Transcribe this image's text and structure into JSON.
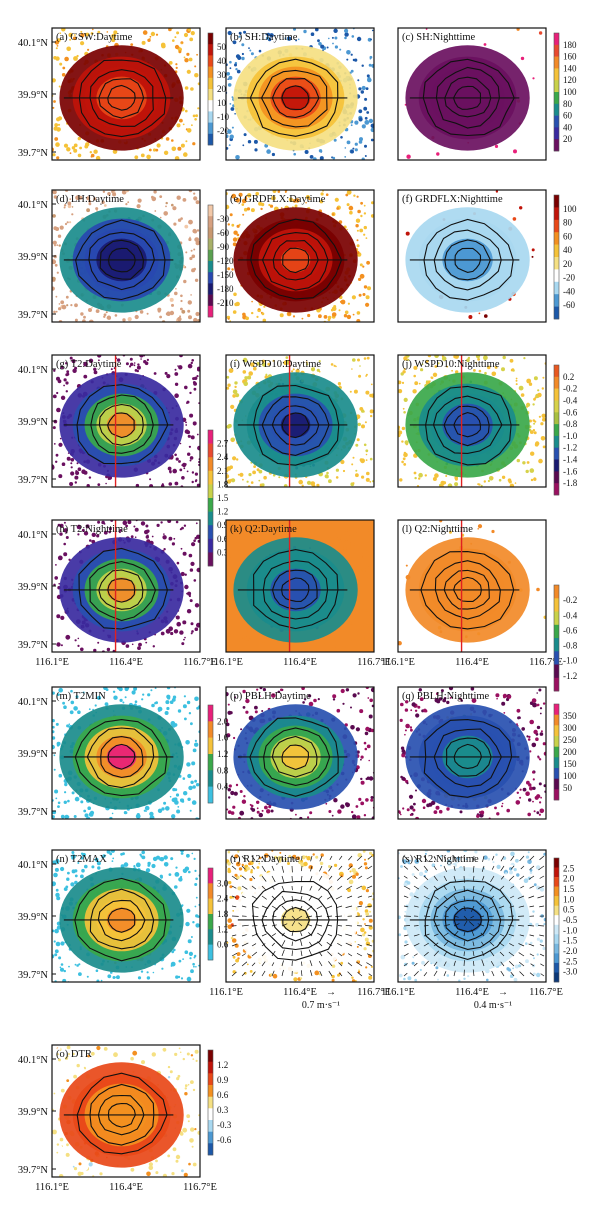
{
  "lat_labels": [
    "40.1°N",
    "39.9°N",
    "39.7°N"
  ],
  "lon_labels": [
    "116.1°E",
    "116.4°E",
    "116.7°E"
  ],
  "colorbars": {
    "cb_gsw": {
      "ticks": [
        "50",
        "40",
        "30",
        "20",
        "10",
        "-10",
        "-20"
      ],
      "colors": [
        "#7a0000",
        "#c0140a",
        "#e84818",
        "#f39020",
        "#f5c238",
        "#f5e082",
        "#ffffff",
        "#a8d8f0",
        "#4c98d2",
        "#1c58a8"
      ]
    },
    "cb_sh": {
      "ticks": [
        "180",
        "160",
        "140",
        "120",
        "100",
        "80",
        "60",
        "40",
        "20"
      ],
      "colors": [
        "#e8207a",
        "#e84a30",
        "#f28a28",
        "#f5c23a",
        "#c8d24a",
        "#3aa84a",
        "#1a8c8c",
        "#2850b0",
        "#3a2aa0",
        "#6a1060"
      ]
    },
    "cb_lh": {
      "ticks": [
        "-30",
        "-60",
        "-90",
        "-120",
        "-150",
        "-180",
        "-210"
      ],
      "colors": [
        "#f2c8a8",
        "#d6a080",
        "#c89870",
        "#a8b068",
        "#5aa050",
        "#1a8c8c",
        "#2848b0",
        "#1a1a70",
        "#5a0a50",
        "#e8207a"
      ]
    },
    "cb_grdflx": {
      "ticks": [
        "100",
        "80",
        "60",
        "40",
        "20",
        "-20",
        "-40",
        "-60"
      ],
      "colors": [
        "#7a0000",
        "#c0140a",
        "#e84818",
        "#f39020",
        "#f5c238",
        "#f5e082",
        "#ffffff",
        "#a8d8f0",
        "#4c98d2",
        "#1c58a8"
      ]
    },
    "cb_t2": {
      "ticks": [
        "2.7",
        "2.4",
        "2.1",
        "1.8",
        "1.5",
        "1.2",
        "0.9",
        "0.6",
        "0.3"
      ],
      "colors": [
        "#e8207a",
        "#e84a30",
        "#f28a28",
        "#f5c23a",
        "#c8d24a",
        "#3aa84a",
        "#1a8c8c",
        "#2850b0",
        "#3a2aa0",
        "#6a1060"
      ]
    },
    "cb_wspd": {
      "ticks": [
        "0.2",
        "-0.2",
        "-0.4",
        "-0.6",
        "-0.8",
        "-1.0",
        "-1.2",
        "-1.4",
        "-1.6",
        "-1.8"
      ],
      "colors": [
        "#e85820",
        "#f28a28",
        "#f5c23a",
        "#d6d24a",
        "#a8c040",
        "#3aa84a",
        "#1a8c8c",
        "#2850b0",
        "#1a1a70",
        "#5a0a50",
        "#9a1060"
      ]
    },
    "cb_q2": {
      "ticks": [
        "-0.2",
        "-0.4",
        "-0.6",
        "-0.8",
        "-1.0",
        "-1.2"
      ],
      "colors": [
        "#f28a28",
        "#f5c23a",
        "#c8d24a",
        "#3aa84a",
        "#1a8c8c",
        "#2850b0",
        "#5a0a50",
        "#9a1060"
      ]
    },
    "cb_t2min": {
      "ticks": [
        "2.0",
        "1.6",
        "1.2",
        "0.8",
        "0.4"
      ],
      "colors": [
        "#e8207a",
        "#f28a28",
        "#f5c23a",
        "#3aa84a",
        "#1a8c8c",
        "#3cc0e0"
      ]
    },
    "cb_pblh": {
      "ticks": [
        "350",
        "300",
        "250",
        "200",
        "150",
        "100",
        "50"
      ],
      "colors": [
        "#e8207a",
        "#f28a28",
        "#f5c23a",
        "#c8d24a",
        "#3aa84a",
        "#1a8c8c",
        "#2850b0",
        "#5a0a50",
        "#9a1060"
      ]
    },
    "cb_t2max": {
      "ticks": [
        "3.0",
        "2.4",
        "1.8",
        "1.2",
        "0.6"
      ],
      "colors": [
        "#e8207a",
        "#f28a28",
        "#f5c23a",
        "#3aa84a",
        "#1a8c8c",
        "#3cc0e0"
      ]
    },
    "cb_r12": {
      "ticks": [
        "2.5",
        "2.0",
        "1.5",
        "1.0",
        "0.5",
        "-0.5",
        "-1.0",
        "-1.5",
        "-2.0",
        "-2.5",
        "-3.0"
      ],
      "colors": [
        "#7a0000",
        "#c0140a",
        "#e84818",
        "#f39020",
        "#f5c238",
        "#f5e082",
        "#ffffff",
        "#cde8f6",
        "#a8d8f0",
        "#78b8e0",
        "#4c98d2",
        "#1c58a8",
        "#0c3878"
      ]
    },
    "cb_dtr": {
      "ticks": [
        "1.2",
        "0.9",
        "0.6",
        "0.3",
        "-0.3",
        "-0.6"
      ],
      "colors": [
        "#7a0000",
        "#c0140a",
        "#e84818",
        "#f39020",
        "#f5e082",
        "#ffffff",
        "#a8d8f0",
        "#4c98d2",
        "#1c58a8"
      ]
    }
  },
  "chart_data": [
    {
      "id": "a",
      "type": "heatmap",
      "title": "(a) GSW:Daytime",
      "colorbar": "cb_gsw",
      "redline": false
    },
    {
      "id": "b",
      "type": "heatmap",
      "title": "(b) SH:Daytime",
      "colorbar": null,
      "redline": false
    },
    {
      "id": "c",
      "type": "heatmap",
      "title": "(c) SH:Nighttime",
      "colorbar": "cb_sh",
      "redline": false
    },
    {
      "id": "d",
      "type": "heatmap",
      "title": "(d) LH:Daytime",
      "colorbar": "cb_lh",
      "redline": false
    },
    {
      "id": "e",
      "type": "heatmap",
      "title": "(e) GRDFLX:Daytime",
      "colorbar": null,
      "redline": false
    },
    {
      "id": "f",
      "type": "heatmap",
      "title": "(f) GRDFLX:Nighttime",
      "colorbar": "cb_grdflx",
      "redline": false
    },
    {
      "id": "g",
      "type": "heatmap",
      "title": "(g) T2:Daytime",
      "colorbar": null,
      "redline": true
    },
    {
      "id": "i",
      "type": "heatmap",
      "title": "(i) WSPD10:Daytime",
      "colorbar": null,
      "redline": true
    },
    {
      "id": "j",
      "type": "heatmap",
      "title": "(j) WSPD10:Nighttime",
      "colorbar": "cb_wspd",
      "redline": true
    },
    {
      "id": "h",
      "type": "heatmap",
      "title": "(h) T2:Nighttime",
      "colorbar": "cb_t2",
      "redline": true
    },
    {
      "id": "k",
      "type": "heatmap",
      "title": "(k) Q2:Daytime",
      "colorbar": null,
      "redline": true
    },
    {
      "id": "l",
      "type": "heatmap",
      "title": "(l) Q2:Nighttime",
      "colorbar": "cb_q2",
      "redline": true
    },
    {
      "id": "m",
      "type": "heatmap",
      "title": "(m) T2MIN",
      "colorbar": "cb_t2min",
      "redline": false
    },
    {
      "id": "p",
      "type": "heatmap",
      "title": "(p) PBLH:Daytime",
      "colorbar": null,
      "redline": false
    },
    {
      "id": "q",
      "type": "heatmap",
      "title": "(q) PBLH:Nighttime",
      "colorbar": "cb_pblh",
      "redline": false
    },
    {
      "id": "n",
      "type": "heatmap",
      "title": "(n) T2MAX",
      "colorbar": "cb_t2max",
      "redline": false
    },
    {
      "id": "r",
      "type": "heatmap",
      "title": "(r) R12:Daytime",
      "colorbar": null,
      "redline": false,
      "quiver": {
        "arrow": "→",
        "label": "0.7 m·s⁻¹"
      }
    },
    {
      "id": "s",
      "type": "heatmap",
      "title": "(s) R12:Nighttime",
      "colorbar": "cb_r12",
      "redline": false,
      "quiver": {
        "arrow": "→",
        "label": "0.4 m·s⁻¹"
      }
    },
    {
      "id": "o",
      "type": "heatmap",
      "title": "(o) DTR",
      "colorbar": "cb_dtr",
      "redline": false
    }
  ]
}
